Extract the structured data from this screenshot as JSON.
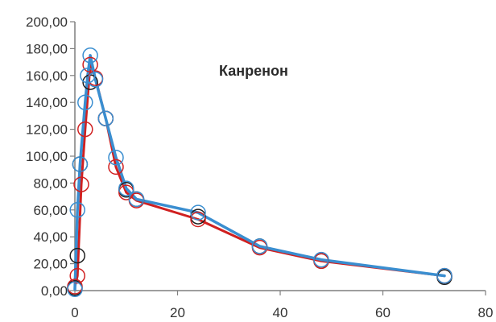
{
  "chart_data": {
    "type": "scatter",
    "title": "Канренон",
    "xlabel": "",
    "ylabel": "",
    "xlim": [
      0,
      80
    ],
    "ylim": [
      0,
      200
    ],
    "x_ticks": [
      0,
      20,
      40,
      60,
      80
    ],
    "y_ticks": [
      0,
      20,
      40,
      60,
      80,
      100,
      120,
      140,
      160,
      180,
      200
    ],
    "x_tick_labels": [
      "0",
      "20",
      "40",
      "60",
      "80"
    ],
    "y_tick_labels": [
      "0,00",
      "20,00",
      "40,00",
      "60,00",
      "80,00",
      "100,00",
      "120,00",
      "140,00",
      "160,00",
      "180,00",
      "200,00"
    ],
    "grid": false,
    "legend": "none",
    "series": [
      {
        "color": "#1f1f1f",
        "marker": "circle",
        "line": false,
        "points": [
          [
            0,
            2
          ],
          [
            0.5,
            26
          ],
          [
            1,
            94
          ],
          [
            3,
            155
          ],
          [
            6,
            128
          ],
          [
            10,
            75
          ],
          [
            12,
            68
          ],
          [
            24,
            55
          ],
          [
            36,
            33
          ],
          [
            48,
            22
          ],
          [
            72,
            10
          ]
        ]
      },
      {
        "color": "#d02020",
        "marker": "circle",
        "line": true,
        "points": [
          [
            0,
            3
          ],
          [
            0.5,
            11
          ],
          [
            1.25,
            79
          ],
          [
            2,
            120
          ],
          [
            3,
            168
          ],
          [
            4,
            158
          ],
          [
            6,
            128
          ],
          [
            8,
            92
          ],
          [
            10,
            73
          ],
          [
            12,
            67
          ],
          [
            24,
            53
          ],
          [
            36,
            32
          ],
          [
            48,
            22
          ],
          [
            72,
            11
          ]
        ]
      },
      {
        "color": "#3a8ed0",
        "marker": "circle",
        "line": true,
        "points": [
          [
            0,
            1
          ],
          [
            0.5,
            60
          ],
          [
            1,
            94
          ],
          [
            2,
            140
          ],
          [
            2.5,
            160
          ],
          [
            3,
            175
          ],
          [
            4,
            157
          ],
          [
            6,
            128
          ],
          [
            8,
            99
          ],
          [
            10,
            76
          ],
          [
            12,
            68
          ],
          [
            24,
            58
          ],
          [
            36,
            33
          ],
          [
            48,
            23
          ],
          [
            72,
            11
          ]
        ]
      }
    ]
  }
}
